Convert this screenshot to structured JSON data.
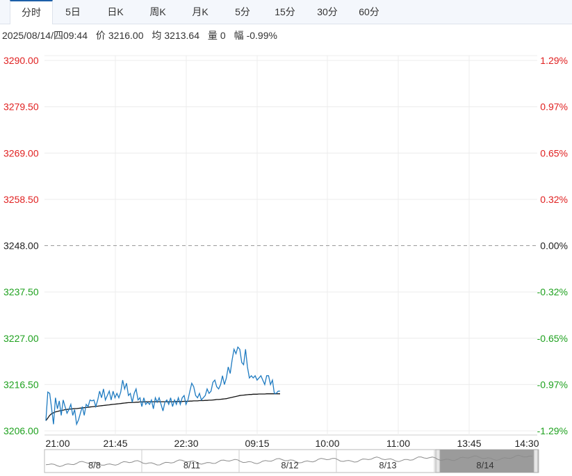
{
  "tabs": [
    {
      "label": "分时",
      "active": true
    },
    {
      "label": "5日",
      "active": false
    },
    {
      "label": "日K",
      "active": false
    },
    {
      "label": "周K",
      "active": false
    },
    {
      "label": "月K",
      "active": false
    },
    {
      "label": "5分",
      "active": false
    },
    {
      "label": "15分",
      "active": false
    },
    {
      "label": "30分",
      "active": false
    },
    {
      "label": "60分",
      "active": false
    }
  ],
  "info": {
    "datetime": "2025/08/14/四09:44",
    "price_label": "价",
    "price": "3216.00",
    "avg_label": "均",
    "avg": "3213.64",
    "vol_label": "量",
    "vol": "0",
    "range_label": "幅",
    "range": "-0.99%"
  },
  "colors": {
    "up": "#e02020",
    "down": "#1ea11e",
    "neutral": "#222222",
    "price_line": "#1f7bc1",
    "avg_line": "#111111",
    "grid": "#ececec"
  },
  "chart_data": {
    "type": "line",
    "y_labels": [
      "3290.00",
      "3279.50",
      "3269.00",
      "3258.50",
      "3248.00",
      "3237.50",
      "3227.00",
      "3216.50",
      "3206.00"
    ],
    "pct_labels": [
      "1.29%",
      "0.97%",
      "0.65%",
      "0.32%",
      "0.00%",
      "-0.32%",
      "-0.65%",
      "-0.97%",
      "-1.29%"
    ],
    "ylim": [
      3206,
      3290
    ],
    "pre_close": 3248,
    "x_ticks": [
      "21:00",
      "21:45",
      "22:30",
      "09:15",
      "10:00",
      "11:00",
      "13:45",
      "14:30"
    ],
    "series": [
      {
        "values": [
          3208.3,
          3214.8,
          3214.5,
          3211.0,
          3207.5,
          3213.5,
          3211.0,
          3212.8,
          3209.5,
          3213.0,
          3211.5,
          3210.0,
          3210.8,
          3212.0,
          3209.5,
          3210.8,
          3207.5,
          3208.5,
          3210.0,
          3211.5,
          3209.5,
          3212.0,
          3211.5,
          3213.0,
          3212.8,
          3213.0,
          3211.5,
          3213.0,
          3215.0,
          3213.5,
          3215.5,
          3213.0,
          3214.0,
          3215.0,
          3213.0,
          3215.0,
          3213.5,
          3214.5,
          3213.5,
          3214.8,
          3217.5,
          3215.5,
          3216.8,
          3214.0,
          3214.5,
          3212.5,
          3214.5,
          3215.5,
          3213.0,
          3213.5,
          3211.5,
          3213.5,
          3212.0,
          3212.5,
          3212.0,
          3213.0,
          3211.0,
          3213.5,
          3212.5,
          3213.5,
          3212.0,
          3210.5,
          3212.5,
          3213.0,
          3212.0,
          3213.5,
          3211.5,
          3213.0,
          3212.0,
          3213.5,
          3212.0,
          3213.5,
          3214.0,
          3212.0,
          3213.0,
          3215.0,
          3216.8,
          3216.0,
          3214.0,
          3213.5,
          3214.5,
          3213.0,
          3213.5,
          3214.0,
          3215.5,
          3214.5,
          3215.0,
          3217.0,
          3217.5,
          3216.0,
          3215.5,
          3216.5,
          3218.5,
          3216.5,
          3218.0,
          3220.5,
          3219.0,
          3222.0,
          3224.5,
          3223.5,
          3225.0,
          3224.5,
          3221.5,
          3221.0,
          3224.5,
          3220.5,
          3218.0,
          3218.5,
          3218.0,
          3218.5,
          3217.5,
          3218.0,
          3218.5,
          3217.5,
          3216.5,
          3218.5,
          3218.5,
          3216.5,
          3217.5,
          3214.5,
          3214.5,
          3215.0,
          3215.0
        ],
        "avg_values": [
          3208.3,
          3208.9,
          3209.5,
          3209.9,
          3210.1,
          3210.3,
          3210.4,
          3210.5,
          3210.6,
          3210.7,
          3210.8,
          3210.85,
          3210.9,
          3210.95,
          3211.0,
          3211.05,
          3211.05,
          3211.1,
          3211.15,
          3211.2,
          3211.25,
          3211.3,
          3211.35,
          3211.4,
          3211.45,
          3211.5,
          3211.55,
          3211.6,
          3211.65,
          3211.7,
          3211.75,
          3211.8,
          3211.85,
          3211.9,
          3211.95,
          3212.0,
          3212.05,
          3212.1,
          3212.15,
          3212.2,
          3212.25,
          3212.3,
          3212.35,
          3212.4,
          3212.4,
          3212.45,
          3212.45,
          3212.5,
          3212.5,
          3212.55,
          3212.55,
          3212.55,
          3212.6,
          3212.6,
          3212.6,
          3212.6,
          3212.6,
          3212.6,
          3212.6,
          3212.6,
          3212.6,
          3212.6,
          3212.6,
          3212.6,
          3212.6,
          3212.6,
          3212.6,
          3212.65,
          3212.65,
          3212.65,
          3212.65,
          3212.65,
          3212.7,
          3212.7,
          3212.7,
          3212.75,
          3212.75,
          3212.8,
          3212.8,
          3212.8,
          3212.85,
          3212.85,
          3212.85,
          3212.9,
          3212.9,
          3212.95,
          3212.95,
          3213.0,
          3213.05,
          3213.1,
          3213.1,
          3213.15,
          3213.2,
          3213.25,
          3213.3,
          3213.4,
          3213.5,
          3213.6,
          3213.7,
          3213.8,
          3213.9,
          3214.0,
          3214.05,
          3214.1,
          3214.15,
          3214.2,
          3214.25,
          3214.25,
          3214.3,
          3214.3,
          3214.3,
          3214.35,
          3214.35,
          3214.35,
          3214.35,
          3214.4,
          3214.4,
          3214.4,
          3214.4,
          3214.4,
          3214.4,
          3214.4,
          3214.4
        ]
      }
    ]
  },
  "navigator": {
    "days": [
      "8/8",
      "8/11",
      "8/12",
      "8/13",
      "8/14"
    ]
  }
}
